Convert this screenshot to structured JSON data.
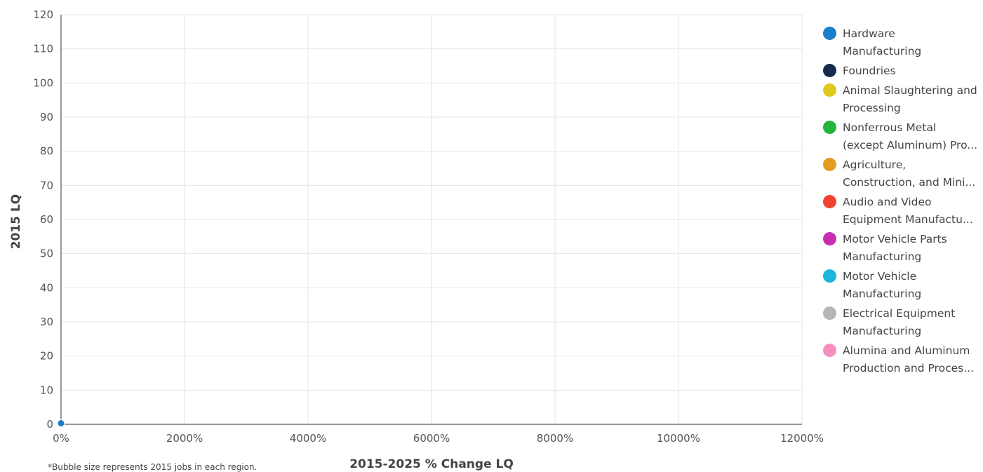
{
  "chart_data": {
    "type": "scatter",
    "title": "",
    "xlabel": "2015-2025 % Change LQ",
    "ylabel": "2015 LQ",
    "x_ticks": [
      "0%",
      "2000%",
      "4000%",
      "6000%",
      "8000%",
      "10000%",
      "12000%"
    ],
    "y_ticks": [
      "0",
      "10",
      "20",
      "30",
      "40",
      "50",
      "60",
      "70",
      "80",
      "90",
      "100",
      "110",
      "120"
    ],
    "xlim": [
      0,
      12000
    ],
    "ylim": [
      0,
      120
    ],
    "grid": true,
    "legend_position": "right",
    "series": [
      {
        "name": "Hardware\nManufacturing",
        "color": "#1a7ec8",
        "points": [
          {
            "x": 0,
            "y": 0.3
          }
        ]
      },
      {
        "name": "Foundries",
        "color": "#152a4e",
        "points": []
      },
      {
        "name": "Animal Slaughtering and\nProcessing",
        "color": "#e0c81c",
        "points": []
      },
      {
        "name": "Nonferrous Metal\n(except Aluminum) Pro...",
        "color": "#22b43c",
        "points": []
      },
      {
        "name": "Agriculture,\nConstruction, and Mini...",
        "color": "#e39c1e",
        "points": []
      },
      {
        "name": "Audio and Video\nEquipment Manufactu...",
        "color": "#f0422e",
        "points": []
      },
      {
        "name": "Motor Vehicle Parts\nManufacturing",
        "color": "#c62fb0",
        "points": []
      },
      {
        "name": "Motor Vehicle\nManufacturing",
        "color": "#1ab6dc",
        "points": []
      },
      {
        "name": "Electrical Equipment\nManufacturing",
        "color": "#b5b5b5",
        "points": []
      },
      {
        "name": "Alumina and Aluminum\nProduction and Proces...",
        "color": "#f58fbe",
        "points": []
      }
    ],
    "footnote": "*Bubble size represents 2015 jobs in each region."
  }
}
